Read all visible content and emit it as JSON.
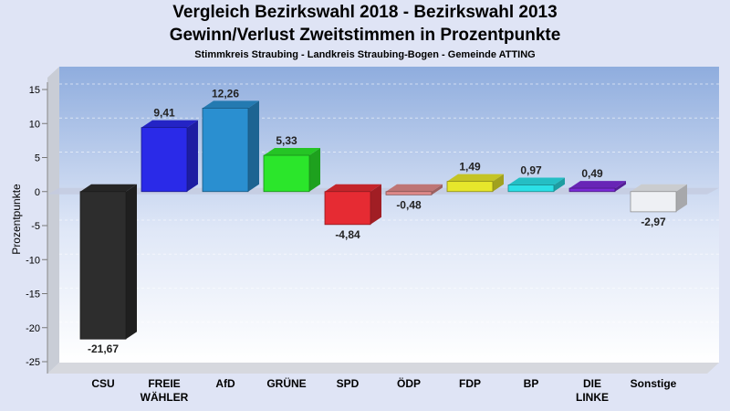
{
  "chart_data": {
    "type": "bar",
    "title": "Vergleich Bezirkswahl 2018 - Bezirkswahl 2013",
    "subtitle": "Gewinn/Verlust Zweitstimmen in Prozentpunkte",
    "subsubtitle": "Stimmkreis Straubing - Landkreis Straubing-Bogen - Gemeinde ATTING",
    "xlabel": "",
    "ylabel": "Prozentpunkte",
    "ylim": [
      -25,
      15
    ],
    "yticks": [
      15,
      10,
      5,
      0,
      -5,
      -10,
      -15,
      -20,
      -25
    ],
    "grid": true,
    "categories": [
      "CSU",
      "FREIE\nWÄHLER",
      "AfD",
      "GRÜNE",
      "SPD",
      "ÖDP",
      "FDP",
      "BP",
      "DIE\nLINKE",
      "Sonstige"
    ],
    "values": [
      -21.67,
      9.41,
      12.26,
      5.33,
      -4.84,
      -0.48,
      1.49,
      0.97,
      0.49,
      -2.97
    ],
    "value_labels": [
      "-21,67",
      "9,41",
      "12,26",
      "5,33",
      "-4,84",
      "-0,48",
      "1,49",
      "0,97",
      "0,49",
      "-2,97"
    ],
    "colors": [
      "#2d2d2d",
      "#2a2ae8",
      "#2a8fd0",
      "#2be62b",
      "#e62b33",
      "#e08a8a",
      "#e6e62b",
      "#2be0e6",
      "#7a2bd6",
      "#eef0f4"
    ]
  }
}
